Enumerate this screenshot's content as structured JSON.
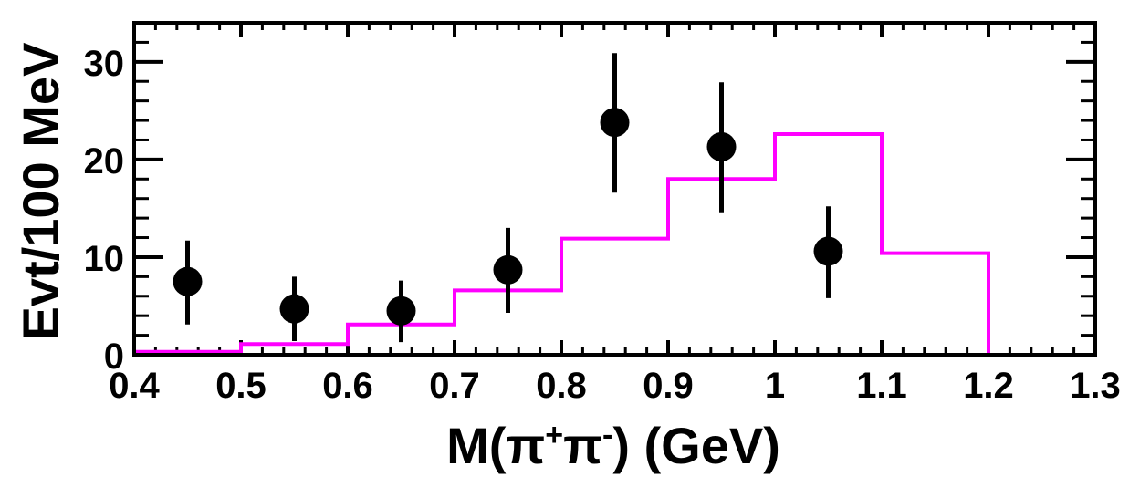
{
  "chart_data": {
    "type": "scatter",
    "title": "",
    "xlabel": "M(π⁺π⁻) (GeV)",
    "xlabel_parts": {
      "base": "M(π",
      "sup1": "+",
      "mid": "π",
      "sup2": "-",
      "end": ") (GeV)"
    },
    "ylabel": "Evt/100 MeV",
    "xlim": [
      0.4,
      1.3
    ],
    "ylim": [
      0,
      34
    ],
    "x_ticks": [
      "0.4",
      "0.5",
      "0.6",
      "0.7",
      "0.8",
      "0.9",
      "1",
      "1.1",
      "1.2",
      "1.3"
    ],
    "y_ticks": [
      "0",
      "10",
      "20",
      "30"
    ],
    "grid": false,
    "series": [
      {
        "kind": "points-with-errors",
        "color": "#000000",
        "x": [
          0.45,
          0.55,
          0.65,
          0.75,
          0.85,
          0.95,
          1.05
        ],
        "y": [
          7.5,
          4.7,
          4.5,
          8.7,
          23.8,
          21.3,
          10.6
        ],
        "err_low": [
          4.4,
          3.3,
          3.2,
          4.4,
          7.2,
          6.7,
          4.8
        ],
        "err_high": [
          4.2,
          3.3,
          3.1,
          4.3,
          7.1,
          6.6,
          4.6
        ]
      },
      {
        "kind": "step-histogram",
        "color": "#ff00ff",
        "bin_edges": [
          0.4,
          0.5,
          0.6,
          0.7,
          0.8,
          0.9,
          1.0,
          1.1,
          1.2,
          1.3
        ],
        "values": [
          0.3,
          1.1,
          3.1,
          6.6,
          11.9,
          18.0,
          22.6,
          10.4,
          0.0
        ]
      }
    ]
  }
}
